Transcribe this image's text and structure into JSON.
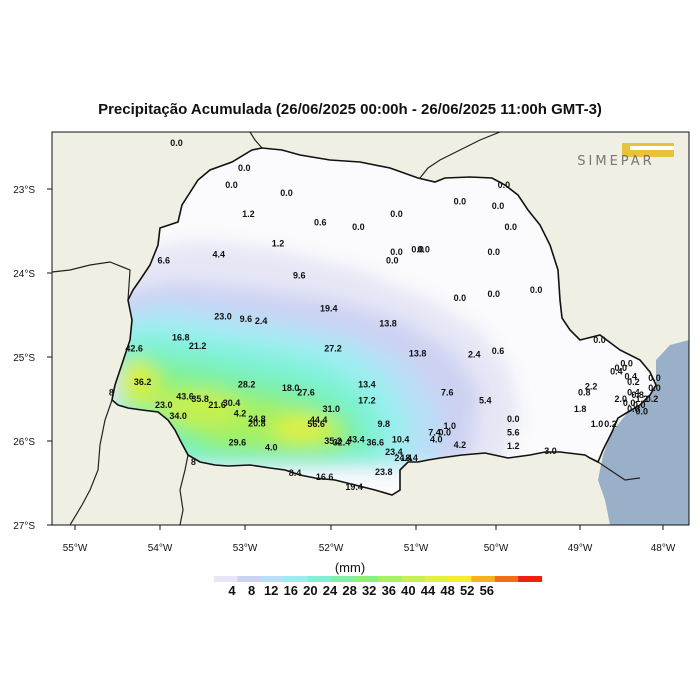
{
  "title": "Precipitação Acumulada (26/06/2025 00:00h - 26/06/2025 11:00h GMT-3)",
  "logo_text": "SIMEPAR",
  "lat_labels": [
    "23°S",
    "24°S",
    "25°S",
    "26°S",
    "27°S"
  ],
  "lon_labels": [
    "55°W",
    "54°W",
    "53°W",
    "52°W",
    "51°W",
    "50°W",
    "49°W",
    "48°W"
  ],
  "legend": {
    "unit": "(mm)",
    "ticks": [
      "4",
      "8",
      "12",
      "16",
      "20",
      "24",
      "28",
      "32",
      "36",
      "40",
      "44",
      "48",
      "52",
      "56"
    ],
    "colors": [
      "#e6e6f6",
      "#ccd2f2",
      "#b8dff6",
      "#9beef0",
      "#7ef2d4",
      "#7ef0a8",
      "#8df07a",
      "#a8f060",
      "#c6f050",
      "#e2f040",
      "#f6ec30",
      "#f9b020",
      "#f46c18",
      "#ee2010"
    ]
  },
  "colors": {
    "land_outside": "#efefe4",
    "ocean": "#9ab0c8",
    "state_fill": "#fbfbfd"
  },
  "stations": [
    {
      "v": "0.0",
      "lon": -53.8,
      "lat": -22.45
    },
    {
      "v": "0.0",
      "lon": -53.0,
      "lat": -22.75
    },
    {
      "v": "0.0",
      "lon": -53.15,
      "lat": -22.95
    },
    {
      "v": "0.0",
      "lon": -52.5,
      "lat": -23.05
    },
    {
      "v": "1.2",
      "lon": -52.95,
      "lat": -23.3
    },
    {
      "v": "0.6",
      "lon": -52.1,
      "lat": -23.4
    },
    {
      "v": "0.0",
      "lon": -51.65,
      "lat": -23.45
    },
    {
      "v": "0.0",
      "lon": -51.2,
      "lat": -23.3
    },
    {
      "v": "0.0",
      "lon": -50.45,
      "lat": -23.15
    },
    {
      "v": "0.0",
      "lon": -50.0,
      "lat": -23.2
    },
    {
      "v": "0.0",
      "lon": -49.85,
      "lat": -23.45
    },
    {
      "v": "0.0",
      "lon": -49.93,
      "lat": -22.95
    },
    {
      "v": "1.2",
      "lon": -52.6,
      "lat": -23.65
    },
    {
      "v": "0.0",
      "lon": -51.2,
      "lat": -23.75
    },
    {
      "v": "0.0",
      "lon": -51.25,
      "lat": -23.85
    },
    {
      "v": "0.0",
      "lon": -50.95,
      "lat": -23.72
    },
    {
      "v": "0.0",
      "lon": -50.88,
      "lat": -23.72
    },
    {
      "v": "0.0",
      "lon": -50.05,
      "lat": -23.75
    },
    {
      "v": "6.6",
      "lon": -53.95,
      "lat": -23.85
    },
    {
      "v": "4.4",
      "lon": -53.3,
      "lat": -23.78
    },
    {
      "v": "9.6",
      "lon": -52.35,
      "lat": -24.03
    },
    {
      "v": "0.0",
      "lon": -49.55,
      "lat": -24.2
    },
    {
      "v": "0.0",
      "lon": -50.05,
      "lat": -24.25
    },
    {
      "v": "0.0",
      "lon": -50.45,
      "lat": -24.3
    },
    {
      "v": "19.4",
      "lon": -52.0,
      "lat": -24.42
    },
    {
      "v": "23.0",
      "lon": -53.25,
      "lat": -24.52
    },
    {
      "v": "9.6",
      "lon": -52.98,
      "lat": -24.55
    },
    {
      "v": "2.4",
      "lon": -52.8,
      "lat": -24.57
    },
    {
      "v": "13.8",
      "lon": -51.3,
      "lat": -24.6
    },
    {
      "v": "16.8",
      "lon": -53.75,
      "lat": -24.77
    },
    {
      "v": "21.2",
      "lon": -53.55,
      "lat": -24.87
    },
    {
      "v": "27.2",
      "lon": -51.95,
      "lat": -24.9
    },
    {
      "v": "13.8",
      "lon": -50.95,
      "lat": -24.96
    },
    {
      "v": "2.4",
      "lon": -50.28,
      "lat": -24.97
    },
    {
      "v": "0.6",
      "lon": -50.0,
      "lat": -24.93
    },
    {
      "v": "0.0",
      "lon": -48.8,
      "lat": -24.8
    },
    {
      "v": "42.6",
      "lon": -54.3,
      "lat": -24.9
    },
    {
      "v": "36.2",
      "lon": -54.2,
      "lat": -25.3
    },
    {
      "v": "28.2",
      "lon": -52.97,
      "lat": -25.33
    },
    {
      "v": "18.0",
      "lon": -52.45,
      "lat": -25.37
    },
    {
      "v": "27.6",
      "lon": -52.27,
      "lat": -25.42
    },
    {
      "v": "13.4",
      "lon": -51.55,
      "lat": -25.33
    },
    {
      "v": "7.6",
      "lon": -50.6,
      "lat": -25.42
    },
    {
      "v": "0.0",
      "lon": -48.48,
      "lat": -25.08
    },
    {
      "v": "0.0",
      "lon": -48.55,
      "lat": -25.13
    },
    {
      "v": "0.4",
      "lon": -48.6,
      "lat": -25.17
    },
    {
      "v": "0.4",
      "lon": -48.43,
      "lat": -25.23
    },
    {
      "v": "0.2",
      "lon": -48.4,
      "lat": -25.3
    },
    {
      "v": "2.2",
      "lon": -48.9,
      "lat": -25.35
    },
    {
      "v": "0.8",
      "lon": -48.98,
      "lat": -25.42
    },
    {
      "v": "0.0",
      "lon": -48.15,
      "lat": -25.25
    },
    {
      "v": "0.0",
      "lon": -48.15,
      "lat": -25.37
    },
    {
      "v": "0.4",
      "lon": -48.4,
      "lat": -25.42
    },
    {
      "v": "2.0",
      "lon": -48.55,
      "lat": -25.5
    },
    {
      "v": "1.2",
      "lon": -48.3,
      "lat": -25.5
    },
    {
      "v": "0.2",
      "lon": -48.18,
      "lat": -25.5
    },
    {
      "v": "0.0",
      "lon": -48.45,
      "lat": -25.55
    },
    {
      "v": "0.0",
      "lon": -48.33,
      "lat": -25.57
    },
    {
      "v": "0.0",
      "lon": -48.4,
      "lat": -25.62
    },
    {
      "v": "0.0",
      "lon": -48.3,
      "lat": -25.65
    },
    {
      "v": "1.8",
      "lon": -49.03,
      "lat": -25.62
    },
    {
      "v": "1.0",
      "lon": -48.83,
      "lat": -25.8
    },
    {
      "v": "0.2",
      "lon": -48.67,
      "lat": -25.8
    },
    {
      "v": "0.8",
      "lon": -48.35,
      "lat": -25.45
    },
    {
      "v": "8",
      "lon": -54.57,
      "lat": -25.42
    },
    {
      "v": "43.6",
      "lon": -53.7,
      "lat": -25.47
    },
    {
      "v": "35.8",
      "lon": -53.52,
      "lat": -25.5
    },
    {
      "v": "30.4",
      "lon": -53.15,
      "lat": -25.55
    },
    {
      "v": "23.0",
      "lon": -53.95,
      "lat": -25.57
    },
    {
      "v": "21.6",
      "lon": -53.32,
      "lat": -25.57
    },
    {
      "v": "17.2",
      "lon": -51.55,
      "lat": -25.52
    },
    {
      "v": "5.4",
      "lon": -50.15,
      "lat": -25.52
    },
    {
      "v": "34.0",
      "lon": -53.78,
      "lat": -25.7
    },
    {
      "v": "4.2",
      "lon": -53.05,
      "lat": -25.67
    },
    {
      "v": "31.0",
      "lon": -51.97,
      "lat": -25.62
    },
    {
      "v": "44.4",
      "lon": -52.12,
      "lat": -25.75
    },
    {
      "v": "24.8",
      "lon": -52.85,
      "lat": -25.74
    },
    {
      "v": "20.8",
      "lon": -52.85,
      "lat": -25.79
    },
    {
      "v": "56.6",
      "lon": -52.15,
      "lat": -25.8
    },
    {
      "v": "9.8",
      "lon": -51.35,
      "lat": -25.8
    },
    {
      "v": "0.0",
      "lon": -49.82,
      "lat": -25.74
    },
    {
      "v": "1.0",
      "lon": -50.57,
      "lat": -25.82
    },
    {
      "v": "7.4",
      "lon": -50.75,
      "lat": -25.9
    },
    {
      "v": "0.0",
      "lon": -50.63,
      "lat": -25.9
    },
    {
      "v": "5.6",
      "lon": -49.82,
      "lat": -25.9
    },
    {
      "v": "29.6",
      "lon": -53.08,
      "lat": -26.02
    },
    {
      "v": "4.0",
      "lon": -52.68,
      "lat": -26.08
    },
    {
      "v": "35.2",
      "lon": -51.95,
      "lat": -26.0
    },
    {
      "v": "32.4",
      "lon": -51.85,
      "lat": -26.02
    },
    {
      "v": "43.4",
      "lon": -51.68,
      "lat": -25.98
    },
    {
      "v": "36.6",
      "lon": -51.45,
      "lat": -26.02
    },
    {
      "v": "10.4",
      "lon": -51.15,
      "lat": -25.98
    },
    {
      "v": "4.0",
      "lon": -50.73,
      "lat": -25.98
    },
    {
      "v": "4.2",
      "lon": -50.45,
      "lat": -26.05
    },
    {
      "v": "1.2",
      "lon": -49.82,
      "lat": -26.06
    },
    {
      "v": "3.0",
      "lon": -49.38,
      "lat": -26.12
    },
    {
      "v": "23.4",
      "lon": -51.23,
      "lat": -26.13
    },
    {
      "v": "24.4",
      "lon": -51.12,
      "lat": -26.2
    },
    {
      "v": "18.4",
      "lon": -51.05,
      "lat": -26.2
    },
    {
      "v": "8",
      "lon": -53.6,
      "lat": -26.25
    },
    {
      "v": "8.4",
      "lon": -52.4,
      "lat": -26.38
    },
    {
      "v": "16.6",
      "lon": -52.05,
      "lat": -26.43
    },
    {
      "v": "23.8",
      "lon": -51.35,
      "lat": -26.37
    },
    {
      "v": "19.4",
      "lon": -51.7,
      "lat": -26.55
    }
  ]
}
